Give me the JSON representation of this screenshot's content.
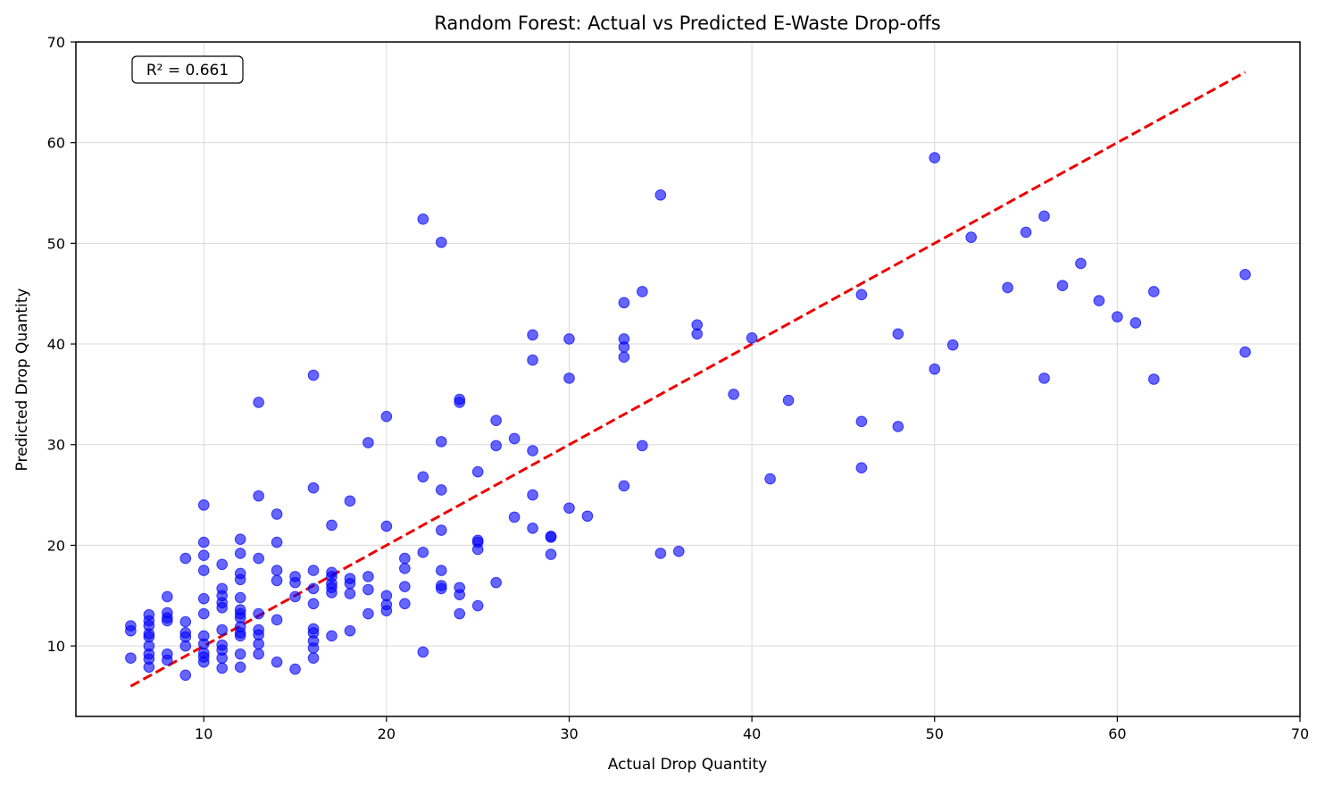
{
  "chart_data": {
    "type": "scatter",
    "title": "Random Forest: Actual vs Predicted E-Waste Drop-offs",
    "xlabel": "Actual Drop Quantity",
    "ylabel": "Predicted Drop Quantity",
    "xlim": [
      3,
      70
    ],
    "ylim": [
      3,
      70
    ],
    "xticks": [
      10,
      20,
      30,
      40,
      50,
      60,
      70
    ],
    "yticks": [
      10,
      20,
      30,
      40,
      50,
      60,
      70
    ],
    "grid": true,
    "annotation": "R² = 0.661",
    "reference_line": {
      "style": "dashed",
      "color": "#ee0000",
      "from": [
        6,
        6
      ],
      "to": [
        67,
        67
      ]
    },
    "point_color": "#0000ff",
    "points": [
      [
        6,
        12.0
      ],
      [
        6,
        11.5
      ],
      [
        6,
        8.8
      ],
      [
        7,
        13.1
      ],
      [
        7,
        12.5
      ],
      [
        7,
        12.0
      ],
      [
        7,
        11.2
      ],
      [
        7,
        10.9
      ],
      [
        7,
        10.0
      ],
      [
        7,
        9.2
      ],
      [
        7,
        8.7
      ],
      [
        7,
        7.9
      ],
      [
        8,
        14.9
      ],
      [
        8,
        13.3
      ],
      [
        8,
        12.8
      ],
      [
        8,
        12.5
      ],
      [
        8,
        9.2
      ],
      [
        8,
        8.6
      ],
      [
        9,
        18.7
      ],
      [
        9,
        12.4
      ],
      [
        9,
        11.3
      ],
      [
        9,
        10.9
      ],
      [
        9,
        10.0
      ],
      [
        9,
        7.1
      ],
      [
        10,
        24.0
      ],
      [
        10,
        20.3
      ],
      [
        10,
        19.0
      ],
      [
        10,
        17.5
      ],
      [
        10,
        14.7
      ],
      [
        10,
        13.2
      ],
      [
        10,
        11.0
      ],
      [
        10,
        10.2
      ],
      [
        10,
        9.3
      ],
      [
        10,
        8.9
      ],
      [
        10,
        8.4
      ],
      [
        11,
        18.1
      ],
      [
        11,
        15.7
      ],
      [
        11,
        15.0
      ],
      [
        11,
        14.3
      ],
      [
        11,
        13.8
      ],
      [
        11,
        11.6
      ],
      [
        11,
        10.1
      ],
      [
        11,
        9.6
      ],
      [
        11,
        8.8
      ],
      [
        11,
        7.8
      ],
      [
        12,
        20.6
      ],
      [
        12,
        19.2
      ],
      [
        12,
        17.2
      ],
      [
        12,
        16.6
      ],
      [
        12,
        14.8
      ],
      [
        12,
        13.6
      ],
      [
        12,
        13.2
      ],
      [
        12,
        12.8
      ],
      [
        12,
        11.9
      ],
      [
        12,
        11.3
      ],
      [
        12,
        11.0
      ],
      [
        12,
        9.2
      ],
      [
        12,
        7.9
      ],
      [
        13,
        34.2
      ],
      [
        13,
        24.9
      ],
      [
        13,
        18.7
      ],
      [
        13,
        13.2
      ],
      [
        13,
        11.6
      ],
      [
        13,
        11.1
      ],
      [
        13,
        10.2
      ],
      [
        13,
        9.2
      ],
      [
        14,
        23.1
      ],
      [
        14,
        20.3
      ],
      [
        14,
        17.5
      ],
      [
        14,
        16.5
      ],
      [
        14,
        12.6
      ],
      [
        14,
        8.4
      ],
      [
        15,
        16.9
      ],
      [
        15,
        16.3
      ],
      [
        15,
        14.9
      ],
      [
        15,
        7.7
      ],
      [
        16,
        36.9
      ],
      [
        16,
        25.7
      ],
      [
        16,
        17.5
      ],
      [
        16,
        15.7
      ],
      [
        16,
        14.2
      ],
      [
        16,
        11.7
      ],
      [
        16,
        11.3
      ],
      [
        16,
        10.5
      ],
      [
        16,
        9.8
      ],
      [
        16,
        8.8
      ],
      [
        17,
        22.0
      ],
      [
        17,
        17.3
      ],
      [
        17,
        16.9
      ],
      [
        17,
        16.2
      ],
      [
        17,
        15.8
      ],
      [
        17,
        15.3
      ],
      [
        17,
        11.0
      ],
      [
        18,
        24.4
      ],
      [
        18,
        16.7
      ],
      [
        18,
        16.2
      ],
      [
        18,
        15.2
      ],
      [
        18,
        11.5
      ],
      [
        19,
        30.2
      ],
      [
        19,
        16.9
      ],
      [
        19,
        15.6
      ],
      [
        19,
        13.2
      ],
      [
        20,
        32.8
      ],
      [
        20,
        21.9
      ],
      [
        20,
        15.0
      ],
      [
        20,
        14.1
      ],
      [
        20,
        13.5
      ],
      [
        21,
        18.7
      ],
      [
        21,
        17.7
      ],
      [
        21,
        15.9
      ],
      [
        21,
        14.2
      ],
      [
        22,
        52.4
      ],
      [
        22,
        26.8
      ],
      [
        22,
        19.3
      ],
      [
        22,
        9.4
      ],
      [
        23,
        50.1
      ],
      [
        23,
        30.3
      ],
      [
        23,
        25.5
      ],
      [
        23,
        21.5
      ],
      [
        23,
        17.5
      ],
      [
        23,
        16.0
      ],
      [
        23,
        15.7
      ],
      [
        24,
        34.5
      ],
      [
        24,
        34.2
      ],
      [
        24,
        15.8
      ],
      [
        24,
        15.1
      ],
      [
        24,
        13.2
      ],
      [
        25,
        27.3
      ],
      [
        25,
        20.5
      ],
      [
        25,
        20.3
      ],
      [
        25,
        19.6
      ],
      [
        25,
        14.0
      ],
      [
        26,
        32.4
      ],
      [
        26,
        29.9
      ],
      [
        26,
        16.3
      ],
      [
        27,
        30.6
      ],
      [
        27,
        22.8
      ],
      [
        28,
        40.9
      ],
      [
        28,
        38.4
      ],
      [
        28,
        29.4
      ],
      [
        28,
        25.0
      ],
      [
        28,
        21.7
      ],
      [
        29,
        20.9
      ],
      [
        29,
        20.8
      ],
      [
        29,
        19.1
      ],
      [
        30,
        40.5
      ],
      [
        30,
        36.6
      ],
      [
        30,
        23.7
      ],
      [
        31,
        22.9
      ],
      [
        33,
        44.1
      ],
      [
        33,
        40.5
      ],
      [
        33,
        39.7
      ],
      [
        33,
        38.7
      ],
      [
        33,
        25.9
      ],
      [
        34,
        45.2
      ],
      [
        34,
        29.9
      ],
      [
        35,
        54.8
      ],
      [
        35,
        19.2
      ],
      [
        36,
        19.4
      ],
      [
        37,
        41.9
      ],
      [
        37,
        41.0
      ],
      [
        39,
        35.0
      ],
      [
        40,
        40.6
      ],
      [
        41,
        26.6
      ],
      [
        42,
        34.4
      ],
      [
        46,
        44.9
      ],
      [
        46,
        32.3
      ],
      [
        46,
        27.7
      ],
      [
        48,
        41.0
      ],
      [
        48,
        31.8
      ],
      [
        50,
        58.5
      ],
      [
        50,
        37.5
      ],
      [
        51,
        39.9
      ],
      [
        52,
        50.6
      ],
      [
        54,
        45.6
      ],
      [
        55,
        51.1
      ],
      [
        56,
        52.7
      ],
      [
        56,
        36.6
      ],
      [
        57,
        45.8
      ],
      [
        58,
        48.0
      ],
      [
        59,
        44.3
      ],
      [
        60,
        42.7
      ],
      [
        61,
        42.1
      ],
      [
        62,
        45.2
      ],
      [
        62,
        36.5
      ],
      [
        67,
        46.9
      ],
      [
        67,
        39.2
      ]
    ]
  }
}
